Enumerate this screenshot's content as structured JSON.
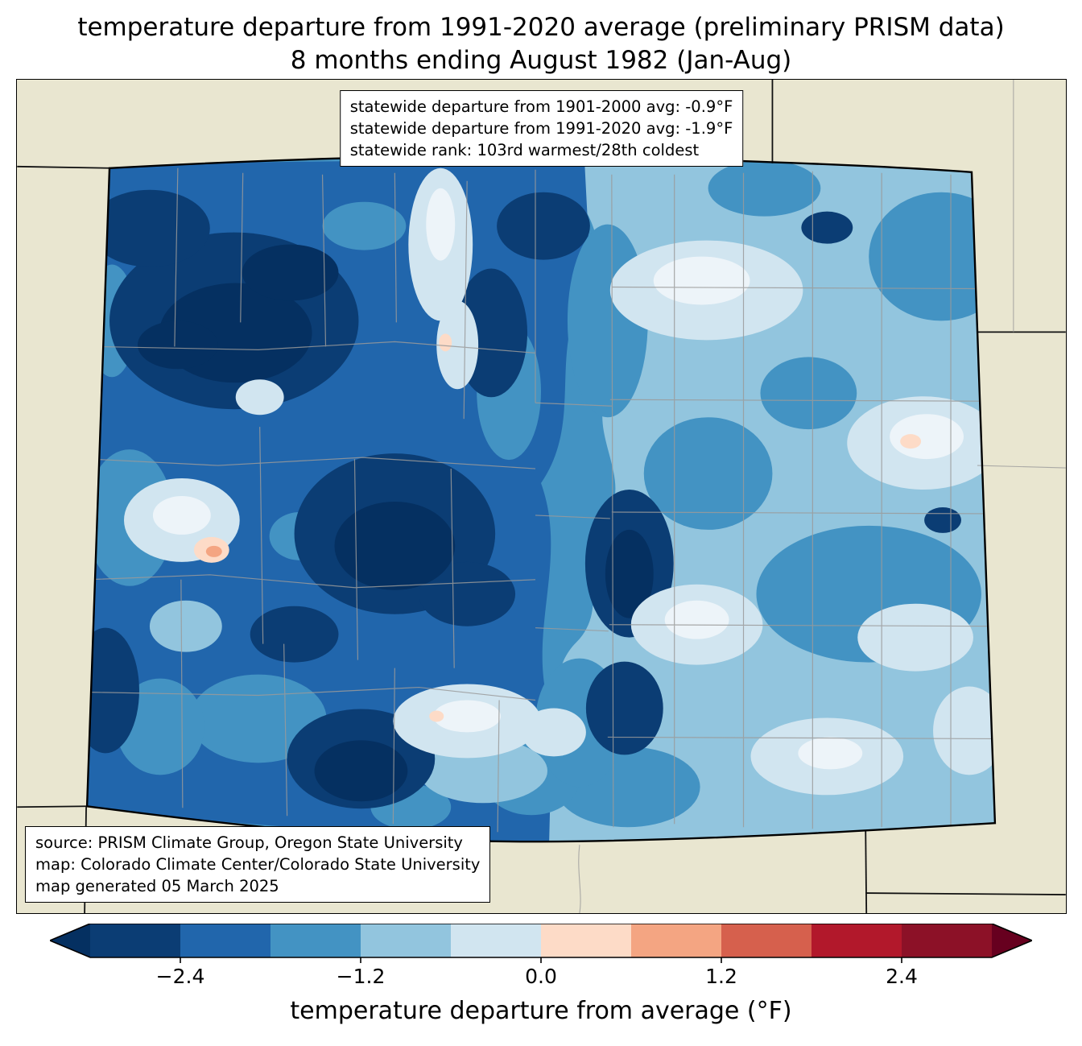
{
  "title": {
    "line1": "temperature departure from 1991-2020 average (preliminary PRISM data)",
    "line2": "8 months ending August 1982 (Jan-Aug)"
  },
  "stats_box": {
    "line1": "statewide departure from 1901-2000 avg: -0.9°F",
    "line2": "statewide departure from 1991-2020 avg: -1.9°F",
    "line3": "statewide rank: 103rd warmest/28th coldest"
  },
  "source_box": {
    "line1": "source: PRISM Climate Group, Oregon State University",
    "line2": "map: Colorado Climate Center/Colorado State University",
    "line3": "map generated 05 March 2025"
  },
  "colorbar": {
    "label": "temperature departure from average (°F)",
    "tick_labels": [
      "−2.4",
      "−1.2",
      "0.0",
      "1.2",
      "2.4"
    ],
    "tick_values": [
      -2.4,
      -1.2,
      0.0,
      1.2,
      2.4
    ],
    "edges": [
      -3.0,
      -2.4,
      -1.8,
      -1.2,
      -0.6,
      0.0,
      0.6,
      1.2,
      1.8,
      2.4,
      3.0
    ],
    "segment_colors": [
      "#0b3d74",
      "#2166ac",
      "#4393c3",
      "#92c5de",
      "#d1e5f0",
      "#fddbc7",
      "#f4a582",
      "#d6604d",
      "#b2182b",
      "#8c1127"
    ],
    "under_color": "#053061",
    "over_color": "#67001f"
  },
  "palette": {
    "beige": "#e9e6d0",
    "base": "#4393c3",
    "light": "#92c5de",
    "pale": "#d1e5f0",
    "pale_core": "#edf4f9",
    "peach": "#fddbc7",
    "orange": "#f4a582",
    "dark": "#2166ac",
    "navy": "#0b3d74",
    "darkest": "#053061",
    "county": "#9a9a9a",
    "state_border": "#000000"
  }
}
